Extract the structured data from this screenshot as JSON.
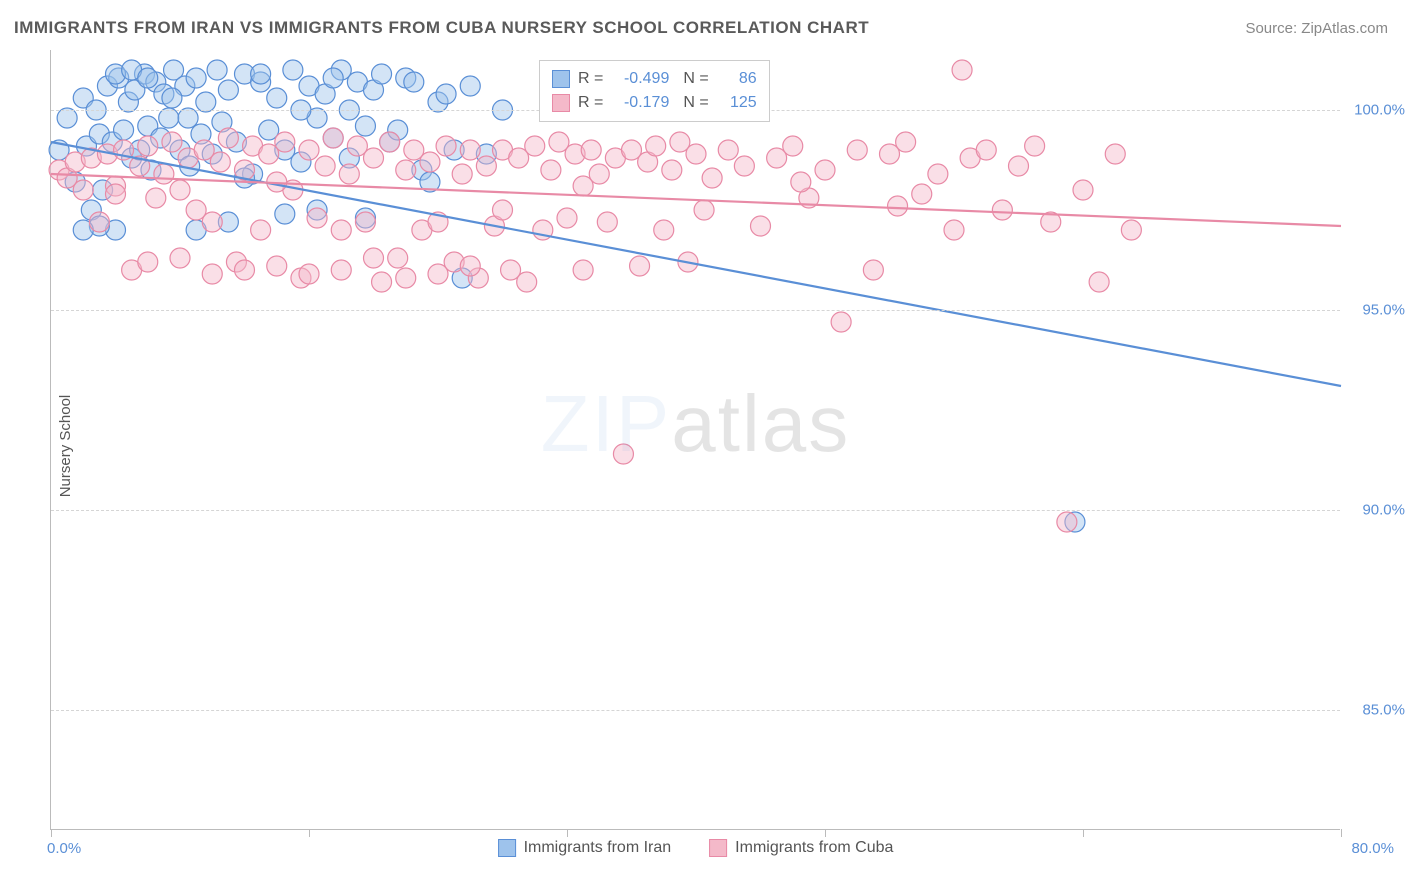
{
  "title": "IMMIGRANTS FROM IRAN VS IMMIGRANTS FROM CUBA NURSERY SCHOOL CORRELATION CHART",
  "source": "Source: ZipAtlas.com",
  "ylabel": "Nursery School",
  "watermark_a": "ZIP",
  "watermark_b": "atlas",
  "chart": {
    "type": "scatter",
    "xlim": [
      0,
      80
    ],
    "ylim": [
      82,
      101.5
    ],
    "x_ticks": [
      0,
      16,
      32,
      48,
      64,
      80
    ],
    "x_tick_labels": {
      "first": "0.0%",
      "last": "80.0%"
    },
    "y_grid": [
      85,
      90,
      95,
      100
    ],
    "y_grid_labels": [
      "85.0%",
      "90.0%",
      "95.0%",
      "100.0%"
    ],
    "background_color": "#ffffff",
    "grid_color": "#d5d5d5",
    "axis_color": "#bbbbbb",
    "marker_radius": 10,
    "marker_opacity": 0.45,
    "line_width": 2.2
  },
  "series": [
    {
      "name": "Immigrants from Iran",
      "color_fill": "#9ec3ec",
      "color_stroke": "#5a8fd6",
      "R": "-0.499",
      "N": "86",
      "trend": {
        "x1": 0,
        "y1": 99.2,
        "x2": 80,
        "y2": 93.1
      },
      "points": [
        [
          0.5,
          99.0
        ],
        [
          1.0,
          99.8
        ],
        [
          1.5,
          98.2
        ],
        [
          2.0,
          100.3
        ],
        [
          2.2,
          99.1
        ],
        [
          2.5,
          97.5
        ],
        [
          2.8,
          100.0
        ],
        [
          3.0,
          99.4
        ],
        [
          3.2,
          98.0
        ],
        [
          3.5,
          100.6
        ],
        [
          3.8,
          99.2
        ],
        [
          4.0,
          97.0
        ],
        [
          4.2,
          100.8
        ],
        [
          4.5,
          99.5
        ],
        [
          4.8,
          100.2
        ],
        [
          5.0,
          98.8
        ],
        [
          5.2,
          100.5
        ],
        [
          5.5,
          99.0
        ],
        [
          5.8,
          100.9
        ],
        [
          6.0,
          99.6
        ],
        [
          6.2,
          98.5
        ],
        [
          6.5,
          100.7
        ],
        [
          6.8,
          99.3
        ],
        [
          7.0,
          100.4
        ],
        [
          7.3,
          99.8
        ],
        [
          7.6,
          101.0
        ],
        [
          8.0,
          99.0
        ],
        [
          8.3,
          100.6
        ],
        [
          8.6,
          98.6
        ],
        [
          9.0,
          100.8
        ],
        [
          9.3,
          99.4
        ],
        [
          9.6,
          100.2
        ],
        [
          10.0,
          98.9
        ],
        [
          10.3,
          101.0
        ],
        [
          10.6,
          99.7
        ],
        [
          11.0,
          100.5
        ],
        [
          11.5,
          99.2
        ],
        [
          12.0,
          100.9
        ],
        [
          12.5,
          98.4
        ],
        [
          13.0,
          100.7
        ],
        [
          13.5,
          99.5
        ],
        [
          14.0,
          100.3
        ],
        [
          14.5,
          99.0
        ],
        [
          15.0,
          101.0
        ],
        [
          15.5,
          98.7
        ],
        [
          16.0,
          100.6
        ],
        [
          16.5,
          99.8
        ],
        [
          17.0,
          100.4
        ],
        [
          17.5,
          99.3
        ],
        [
          18.0,
          101.0
        ],
        [
          18.5,
          98.8
        ],
        [
          19.0,
          100.7
        ],
        [
          19.5,
          99.6
        ],
        [
          20.0,
          100.5
        ],
        [
          21.0,
          99.2
        ],
        [
          22.0,
          100.8
        ],
        [
          23.0,
          98.5
        ],
        [
          24.0,
          100.2
        ],
        [
          25.0,
          99.0
        ],
        [
          26.0,
          100.6
        ],
        [
          27.0,
          98.9
        ],
        [
          28.0,
          100.0
        ],
        [
          4.0,
          100.9
        ],
        [
          5.0,
          101.0
        ],
        [
          6.0,
          100.8
        ],
        [
          3.0,
          97.1
        ],
        [
          2.0,
          97.0
        ],
        [
          9.0,
          97.0
        ],
        [
          8.5,
          99.8
        ],
        [
          7.5,
          100.3
        ],
        [
          11.0,
          97.2
        ],
        [
          12.0,
          98.3
        ],
        [
          13.0,
          100.9
        ],
        [
          14.5,
          97.4
        ],
        [
          15.5,
          100.0
        ],
        [
          16.5,
          97.5
        ],
        [
          17.5,
          100.8
        ],
        [
          18.5,
          100.0
        ],
        [
          19.5,
          97.3
        ],
        [
          20.5,
          100.9
        ],
        [
          21.5,
          99.5
        ],
        [
          22.5,
          100.7
        ],
        [
          23.5,
          98.2
        ],
        [
          24.5,
          100.4
        ],
        [
          25.5,
          95.8
        ],
        [
          63.5,
          89.7
        ]
      ]
    },
    {
      "name": "Immigrants from Cuba",
      "color_fill": "#f4b9c9",
      "color_stroke": "#e88aa6",
      "R": "-0.179",
      "N": "125",
      "trend": {
        "x1": 0,
        "y1": 98.4,
        "x2": 80,
        "y2": 97.1
      },
      "points": [
        [
          0.5,
          98.5
        ],
        [
          1.0,
          98.3
        ],
        [
          1.5,
          98.7
        ],
        [
          2.0,
          98.0
        ],
        [
          2.5,
          98.8
        ],
        [
          3.0,
          97.2
        ],
        [
          3.5,
          98.9
        ],
        [
          4.0,
          98.1
        ],
        [
          4.5,
          99.0
        ],
        [
          5.0,
          96.0
        ],
        [
          5.5,
          98.6
        ],
        [
          6.0,
          99.1
        ],
        [
          6.5,
          97.8
        ],
        [
          7.0,
          98.4
        ],
        [
          7.5,
          99.2
        ],
        [
          8.0,
          96.3
        ],
        [
          8.5,
          98.8
        ],
        [
          9.0,
          97.5
        ],
        [
          9.5,
          99.0
        ],
        [
          10.0,
          95.9
        ],
        [
          10.5,
          98.7
        ],
        [
          11.0,
          99.3
        ],
        [
          11.5,
          96.2
        ],
        [
          12.0,
          98.5
        ],
        [
          12.5,
          99.1
        ],
        [
          13.0,
          97.0
        ],
        [
          13.5,
          98.9
        ],
        [
          14.0,
          96.1
        ],
        [
          14.5,
          99.2
        ],
        [
          15.0,
          98.0
        ],
        [
          15.5,
          95.8
        ],
        [
          16.0,
          99.0
        ],
        [
          16.5,
          97.3
        ],
        [
          17.0,
          98.6
        ],
        [
          17.5,
          99.3
        ],
        [
          18.0,
          96.0
        ],
        [
          18.5,
          98.4
        ],
        [
          19.0,
          99.1
        ],
        [
          19.5,
          97.2
        ],
        [
          20.0,
          98.8
        ],
        [
          20.5,
          95.7
        ],
        [
          21.0,
          99.2
        ],
        [
          21.5,
          96.3
        ],
        [
          22.0,
          98.5
        ],
        [
          22.5,
          99.0
        ],
        [
          23.0,
          97.0
        ],
        [
          23.5,
          98.7
        ],
        [
          24.0,
          95.9
        ],
        [
          24.5,
          99.1
        ],
        [
          25.0,
          96.2
        ],
        [
          25.5,
          98.4
        ],
        [
          26.0,
          99.0
        ],
        [
          26.5,
          95.8
        ],
        [
          27.0,
          98.6
        ],
        [
          27.5,
          97.1
        ],
        [
          28.0,
          99.0
        ],
        [
          28.5,
          96.0
        ],
        [
          29.0,
          98.8
        ],
        [
          29.5,
          95.7
        ],
        [
          30.0,
          99.1
        ],
        [
          30.5,
          97.0
        ],
        [
          31.0,
          98.5
        ],
        [
          31.5,
          99.2
        ],
        [
          32.0,
          97.3
        ],
        [
          32.5,
          98.9
        ],
        [
          33.0,
          96.0
        ],
        [
          33.5,
          99.0
        ],
        [
          34.0,
          98.4
        ],
        [
          34.5,
          97.2
        ],
        [
          35.0,
          98.8
        ],
        [
          35.5,
          91.4
        ],
        [
          36.0,
          99.0
        ],
        [
          36.5,
          96.1
        ],
        [
          37.0,
          98.7
        ],
        [
          37.5,
          99.1
        ],
        [
          38.0,
          97.0
        ],
        [
          38.5,
          98.5
        ],
        [
          39.0,
          99.2
        ],
        [
          39.5,
          96.2
        ],
        [
          40.0,
          98.9
        ],
        [
          41.0,
          98.3
        ],
        [
          42.0,
          99.0
        ],
        [
          43.0,
          98.6
        ],
        [
          44.0,
          97.1
        ],
        [
          45.0,
          98.8
        ],
        [
          46.0,
          99.1
        ],
        [
          47.0,
          97.8
        ],
        [
          48.0,
          98.5
        ],
        [
          49.0,
          94.7
        ],
        [
          50.0,
          99.0
        ],
        [
          51.0,
          96.0
        ],
        [
          52.0,
          98.9
        ],
        [
          53.0,
          99.2
        ],
        [
          54.0,
          97.9
        ],
        [
          55.0,
          98.4
        ],
        [
          56.0,
          97.0
        ],
        [
          57.0,
          98.8
        ],
        [
          58.0,
          99.0
        ],
        [
          59.0,
          97.5
        ],
        [
          60.0,
          98.6
        ],
        [
          61.0,
          99.1
        ],
        [
          62.0,
          97.2
        ],
        [
          63.0,
          89.7
        ],
        [
          64.0,
          98.0
        ],
        [
          65.0,
          95.7
        ],
        [
          66.0,
          98.9
        ],
        [
          67.0,
          97.0
        ],
        [
          4.0,
          97.9
        ],
        [
          6.0,
          96.2
        ],
        [
          8.0,
          98.0
        ],
        [
          10.0,
          97.2
        ],
        [
          12.0,
          96.0
        ],
        [
          14.0,
          98.2
        ],
        [
          16.0,
          95.9
        ],
        [
          18.0,
          97.0
        ],
        [
          20.0,
          96.3
        ],
        [
          22.0,
          95.8
        ],
        [
          24.0,
          97.2
        ],
        [
          26.0,
          96.1
        ],
        [
          28.0,
          97.5
        ],
        [
          33.0,
          98.1
        ],
        [
          40.5,
          97.5
        ],
        [
          46.5,
          98.2
        ],
        [
          52.5,
          97.6
        ],
        [
          56.5,
          101.0
        ]
      ]
    }
  ],
  "legend": {
    "items": [
      "Immigrants from Iran",
      "Immigrants from Cuba"
    ]
  },
  "statbox": {
    "rows": [
      {
        "sw_fill": "#9ec3ec",
        "sw_stroke": "#5a8fd6",
        "Rlbl": "R =",
        "R": "-0.499",
        "Nlbl": "N =",
        "N": "86"
      },
      {
        "sw_fill": "#f4b9c9",
        "sw_stroke": "#e88aa6",
        "Rlbl": "R =",
        "R": "-0.179",
        "Nlbl": "N =",
        "N": "125"
      }
    ]
  }
}
